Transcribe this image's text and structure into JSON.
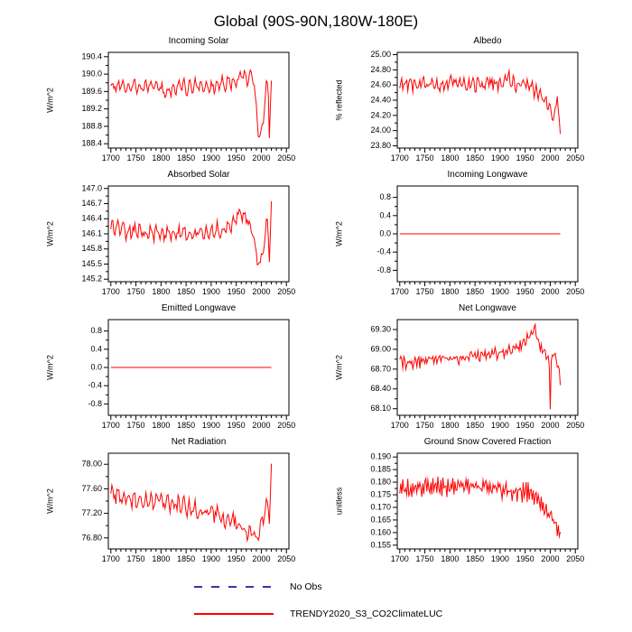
{
  "page": {
    "title": "Global (90S-90N,180W-180E)"
  },
  "legend": {
    "items": [
      {
        "label": "No Obs",
        "color": "#3434b4",
        "style": "dashed"
      },
      {
        "label": "TRENDY2020_S3_CO2ClimateLUC",
        "color": "#ff0000",
        "style": "solid"
      }
    ]
  },
  "chart_data": {
    "type": "line",
    "x_axis": {
      "ticks": [
        1700,
        1750,
        1800,
        1850,
        1900,
        1950,
        2000,
        2050
      ],
      "minor_step": 10,
      "xlim": [
        1695,
        2055
      ],
      "data_range": [
        1700,
        2020
      ]
    },
    "series_name": "TRENDY2020_S3_CO2ClimateLUC",
    "line_color": "#ff0000",
    "charts": [
      {
        "title": "Incoming Solar",
        "ylabel": "W/m^2",
        "ylim": [
          188.3,
          190.5
        ],
        "ytick_vals": [
          188.4,
          188.8,
          189.2,
          189.6,
          190.0,
          190.4
        ],
        "ytick_decimals": 1,
        "trend": [
          [
            1700,
            189.75
          ],
          [
            1750,
            189.7
          ],
          [
            1780,
            189.75
          ],
          [
            1810,
            189.6
          ],
          [
            1840,
            189.7
          ],
          [
            1870,
            189.7
          ],
          [
            1900,
            189.72
          ],
          [
            1930,
            189.8
          ],
          [
            1950,
            189.85
          ],
          [
            1960,
            189.95
          ],
          [
            1970,
            189.9
          ],
          [
            1980,
            189.95
          ],
          [
            1985,
            189.8
          ],
          [
            1990,
            189.15
          ],
          [
            1995,
            188.6
          ],
          [
            2000,
            188.55
          ],
          [
            2004,
            188.9
          ],
          [
            2008,
            189.5
          ],
          [
            2011,
            189.9
          ],
          [
            2014,
            189.5
          ],
          [
            2016,
            188.7
          ],
          [
            2018,
            189.3
          ],
          [
            2020,
            189.8
          ]
        ],
        "noise_amp": 0.1,
        "cycle_amp": 0.12,
        "cycle_period": 11,
        "seed": 11
      },
      {
        "title": "Albedo",
        "ylabel": "% reflected",
        "ylim": [
          23.77,
          25.03
        ],
        "ytick_vals": [
          23.8,
          24.0,
          24.2,
          24.4,
          24.6,
          24.8,
          25.0
        ],
        "ytick_decimals": 2,
        "trend": [
          [
            1700,
            24.62
          ],
          [
            1750,
            24.6
          ],
          [
            1800,
            24.62
          ],
          [
            1850,
            24.6
          ],
          [
            1900,
            24.63
          ],
          [
            1915,
            24.68
          ],
          [
            1930,
            24.62
          ],
          [
            1945,
            24.65
          ],
          [
            1955,
            24.6
          ],
          [
            1965,
            24.55
          ],
          [
            1975,
            24.52
          ],
          [
            1985,
            24.45
          ],
          [
            1995,
            24.35
          ],
          [
            2002,
            24.25
          ],
          [
            2007,
            24.18
          ],
          [
            2010,
            24.22
          ],
          [
            2013,
            24.5
          ],
          [
            2015,
            24.35
          ],
          [
            2017,
            24.1
          ],
          [
            2019,
            24.0
          ],
          [
            2020,
            23.98
          ]
        ],
        "noise_amp": 0.07,
        "cycle_amp": 0.05,
        "cycle_period": 9,
        "seed": 22
      },
      {
        "title": "Absorbed Solar",
        "ylabel": "W/m^2",
        "ylim": [
          145.15,
          147.05
        ],
        "ytick_vals": [
          145.2,
          145.5,
          145.8,
          146.1,
          146.4,
          146.7,
          147.0
        ],
        "ytick_decimals": 1,
        "trend": [
          [
            1700,
            146.2
          ],
          [
            1750,
            146.15
          ],
          [
            1800,
            146.1
          ],
          [
            1850,
            146.12
          ],
          [
            1900,
            146.15
          ],
          [
            1930,
            146.2
          ],
          [
            1945,
            146.35
          ],
          [
            1955,
            146.55
          ],
          [
            1965,
            146.5
          ],
          [
            1975,
            146.35
          ],
          [
            1985,
            146.0
          ],
          [
            1992,
            145.55
          ],
          [
            1998,
            145.5
          ],
          [
            2002,
            145.75
          ],
          [
            2006,
            146.0
          ],
          [
            2010,
            146.35
          ],
          [
            2013,
            146.15
          ],
          [
            2016,
            145.7
          ],
          [
            2018,
            146.15
          ],
          [
            2020,
            146.6
          ]
        ],
        "noise_amp": 0.1,
        "cycle_amp": 0.1,
        "cycle_period": 11,
        "seed": 33
      },
      {
        "title": "Incoming Longwave",
        "ylabel": "W/m^2",
        "ylim": [
          -1.05,
          1.05
        ],
        "ytick_vals": [
          -0.8,
          -0.4,
          0.0,
          0.4,
          0.8
        ],
        "ytick_decimals": 1,
        "trend": [
          [
            1700,
            0.0
          ],
          [
            2020,
            0.0
          ]
        ],
        "noise_amp": 0,
        "cycle_amp": 0,
        "cycle_period": 10,
        "seed": 44
      },
      {
        "title": "Emitted Longwave",
        "ylabel": "W/m^2",
        "ylim": [
          -1.05,
          1.05
        ],
        "ytick_vals": [
          -0.8,
          -0.4,
          0.0,
          0.4,
          0.8
        ],
        "ytick_decimals": 1,
        "trend": [
          [
            1700,
            0.0
          ],
          [
            2020,
            0.0
          ]
        ],
        "noise_amp": 0,
        "cycle_amp": 0,
        "cycle_period": 10,
        "seed": 55
      },
      {
        "title": "Net Longwave",
        "ylabel": "W/m^2",
        "ylim": [
          68.0,
          69.45
        ],
        "ytick_vals": [
          68.1,
          68.4,
          68.7,
          69.0,
          69.3
        ],
        "ytick_decimals": 2,
        "trend": [
          [
            1700,
            68.8
          ],
          [
            1750,
            68.82
          ],
          [
            1800,
            68.85
          ],
          [
            1850,
            68.9
          ],
          [
            1900,
            68.95
          ],
          [
            1920,
            69.0
          ],
          [
            1940,
            69.05
          ],
          [
            1950,
            69.1
          ],
          [
            1958,
            69.2
          ],
          [
            1965,
            69.3
          ],
          [
            1970,
            69.33
          ],
          [
            1975,
            69.15
          ],
          [
            1980,
            69.05
          ],
          [
            1985,
            69.0
          ],
          [
            1990,
            68.95
          ],
          [
            1995,
            68.85
          ],
          [
            1998,
            68.8
          ],
          [
            2000,
            68.15
          ],
          [
            2002,
            68.8
          ],
          [
            2006,
            68.9
          ],
          [
            2010,
            68.85
          ],
          [
            2014,
            68.75
          ],
          [
            2017,
            68.65
          ],
          [
            2020,
            68.55
          ]
        ],
        "noise_amp": 0.07,
        "cycle_amp": 0.04,
        "cycle_period": 7,
        "seed": 66
      },
      {
        "title": "Net Radiation",
        "ylabel": "W/m^2",
        "ylim": [
          76.62,
          78.18
        ],
        "ytick_vals": [
          76.8,
          77.2,
          77.6,
          78.0
        ],
        "ytick_decimals": 2,
        "trend": [
          [
            1700,
            77.5
          ],
          [
            1750,
            77.42
          ],
          [
            1800,
            77.38
          ],
          [
            1850,
            77.3
          ],
          [
            1900,
            77.2
          ],
          [
            1925,
            77.12
          ],
          [
            1950,
            77.05
          ],
          [
            1965,
            76.95
          ],
          [
            1975,
            76.9
          ],
          [
            1985,
            76.85
          ],
          [
            1992,
            76.82
          ],
          [
            1997,
            76.9
          ],
          [
            2001,
            77.0
          ],
          [
            2005,
            77.1
          ],
          [
            2009,
            77.3
          ],
          [
            2012,
            77.35
          ],
          [
            2014,
            77.2
          ],
          [
            2016,
            77.05
          ],
          [
            2018,
            77.55
          ],
          [
            2020,
            78.05
          ]
        ],
        "noise_amp": 0.1,
        "cycle_amp": 0.08,
        "cycle_period": 11,
        "seed": 77
      },
      {
        "title": "Ground Snow Covered Fraction",
        "ylabel": "unitless",
        "ylim": [
          0.1535,
          0.1915
        ],
        "ytick_vals": [
          0.155,
          0.16,
          0.165,
          0.17,
          0.175,
          0.18,
          0.185,
          0.19
        ],
        "ytick_decimals": 3,
        "trend": [
          [
            1700,
            0.178
          ],
          [
            1750,
            0.178
          ],
          [
            1800,
            0.178
          ],
          [
            1850,
            0.178
          ],
          [
            1900,
            0.1775
          ],
          [
            1920,
            0.177
          ],
          [
            1940,
            0.176
          ],
          [
            1955,
            0.1765
          ],
          [
            1965,
            0.174
          ],
          [
            1975,
            0.172
          ],
          [
            1985,
            0.17
          ],
          [
            1995,
            0.168
          ],
          [
            2000,
            0.1665
          ],
          [
            2005,
            0.165
          ],
          [
            2010,
            0.1635
          ],
          [
            2014,
            0.1625
          ],
          [
            2017,
            0.16
          ],
          [
            2019,
            0.161
          ],
          [
            2020,
            0.1615
          ]
        ],
        "noise_amp": 0.0025,
        "cycle_amp": 0.002,
        "cycle_period": 5,
        "seed": 88
      }
    ]
  }
}
